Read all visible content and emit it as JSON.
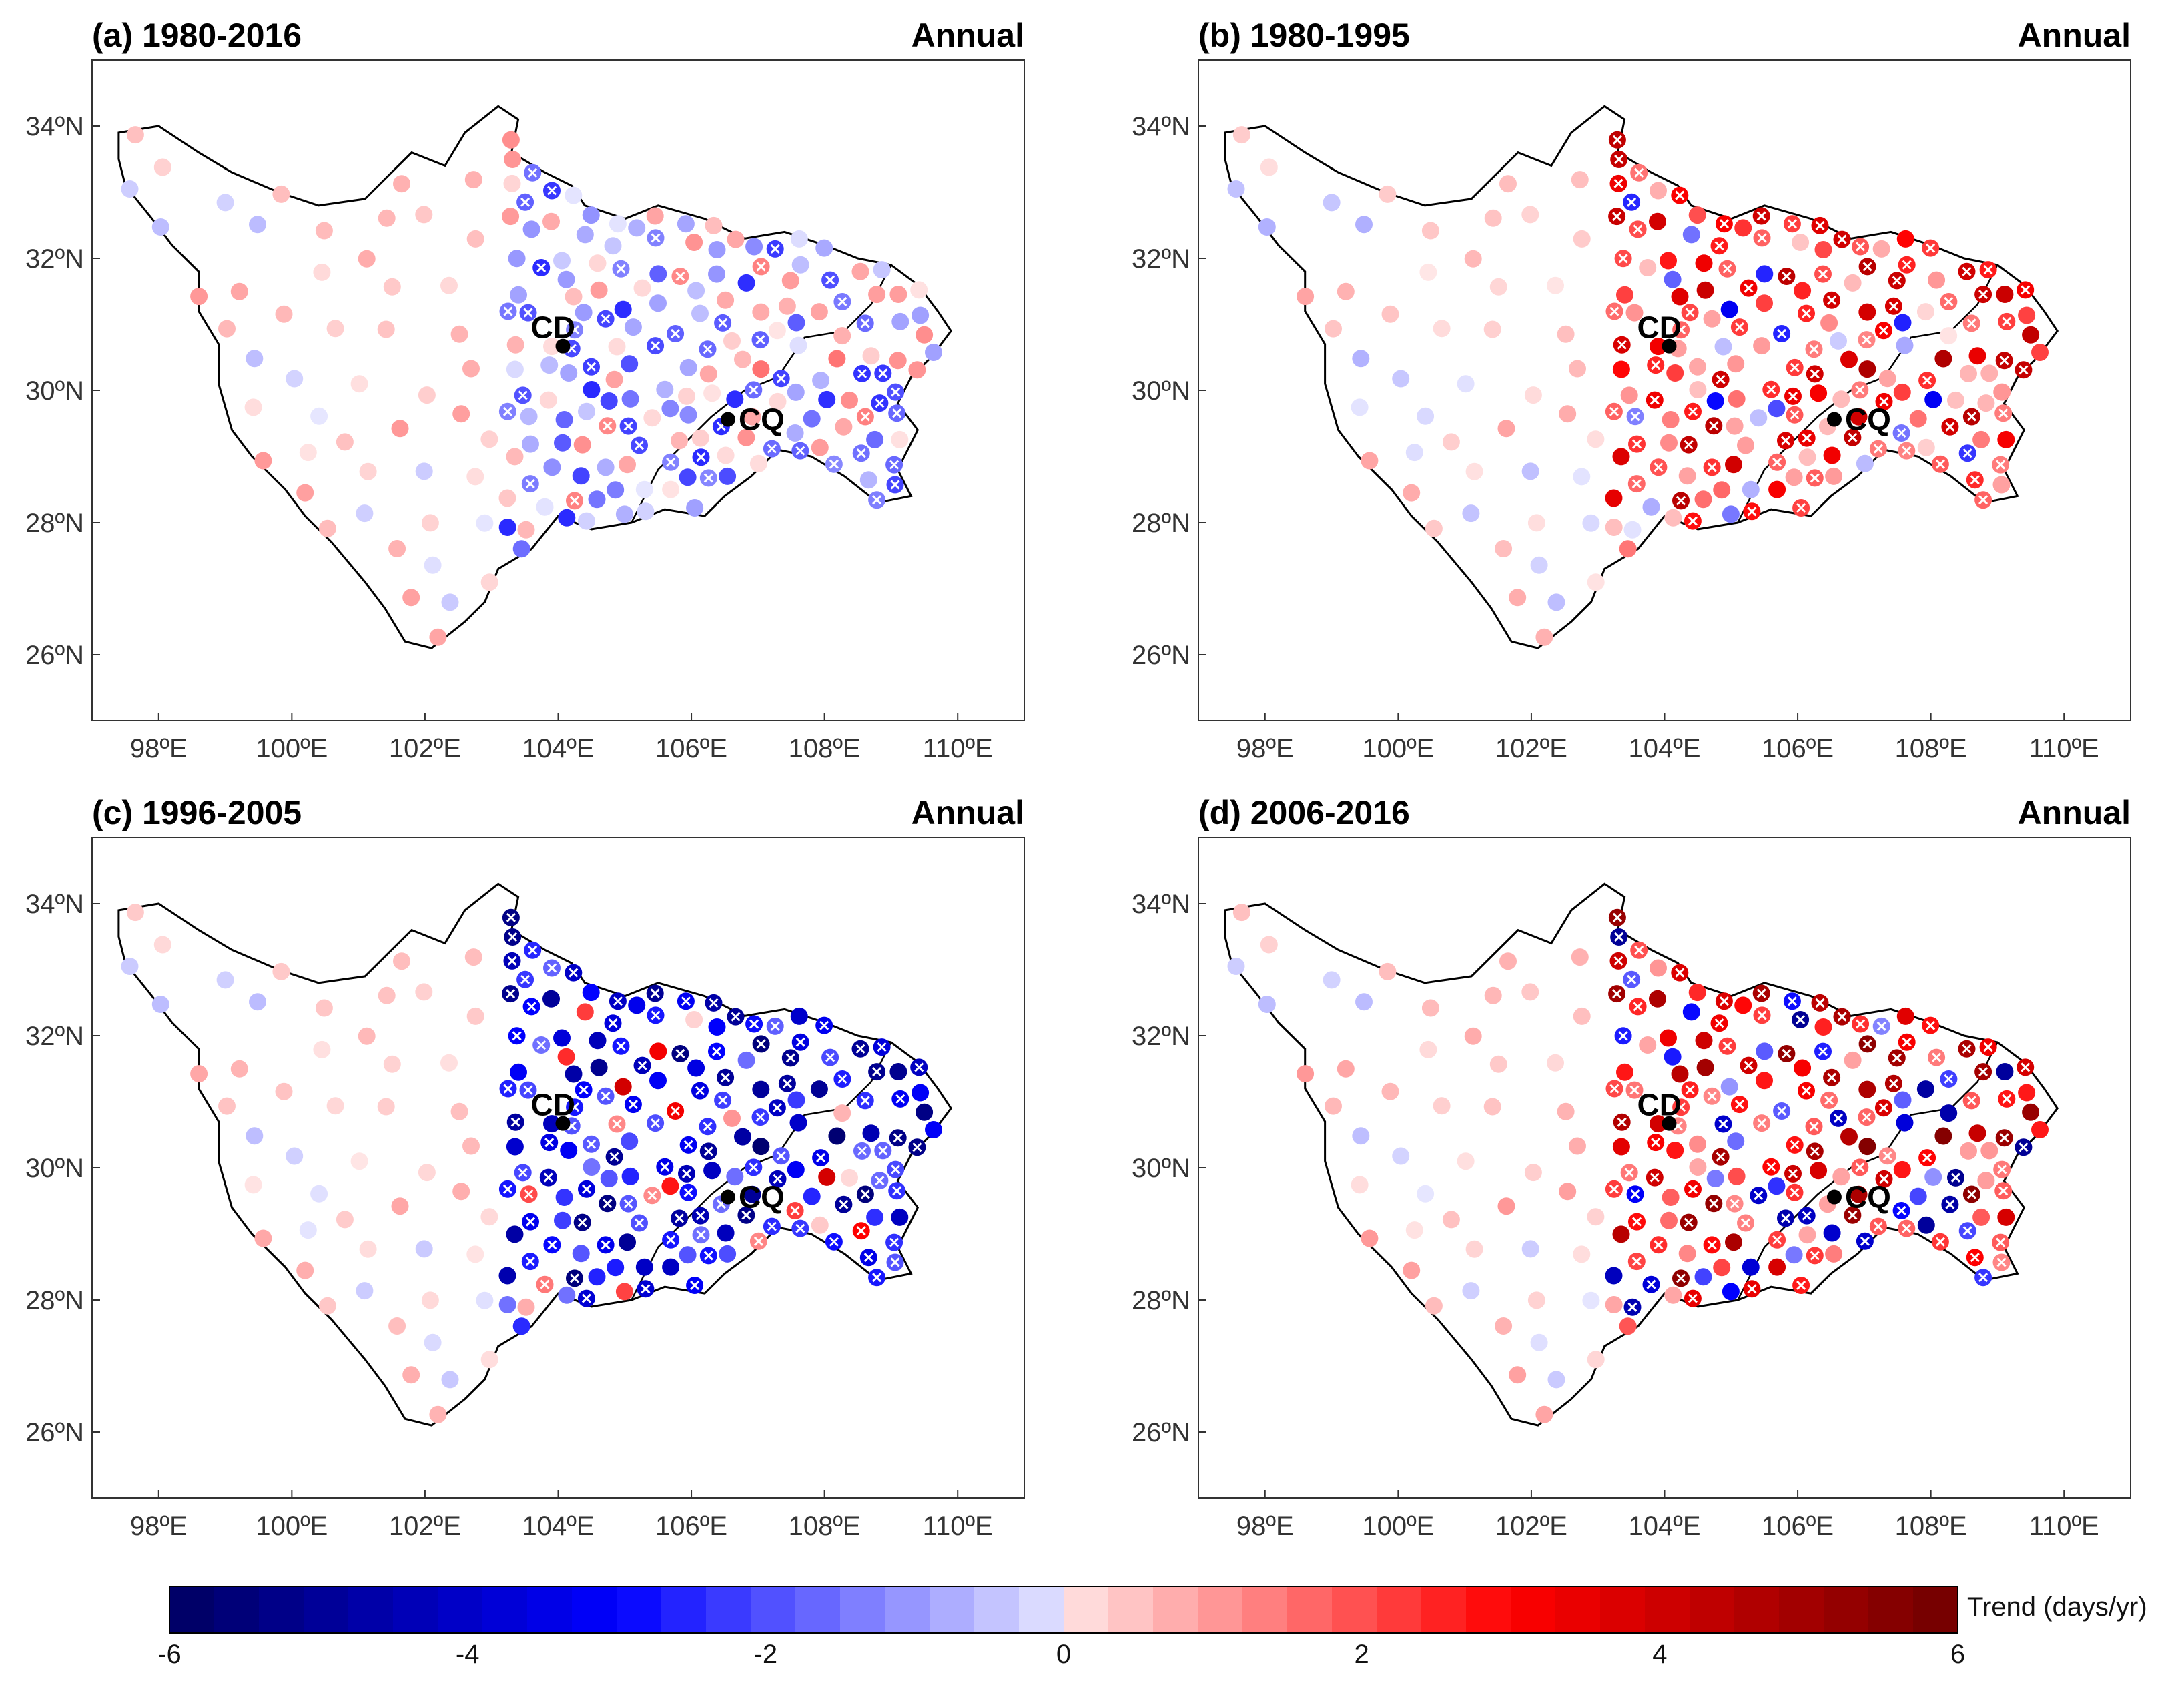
{
  "figure": {
    "panels": [
      {
        "id": "a",
        "label": "(a) 1980-2016",
        "season": "Annual",
        "mode": "a"
      },
      {
        "id": "b",
        "label": "(b) 1980-1995",
        "season": "Annual",
        "mode": "b"
      },
      {
        "id": "c",
        "label": "(c) 1996-2005",
        "season": "Annual",
        "mode": "c"
      },
      {
        "id": "d",
        "label": "(d) 2006-2016",
        "season": "Annual",
        "mode": "d"
      }
    ],
    "cities": [
      {
        "name": "CD",
        "lon": 104.07,
        "lat": 30.67
      },
      {
        "name": "CQ",
        "lon": 106.55,
        "lat": 29.56
      }
    ],
    "axes": {
      "lon_range": [
        97,
        111
      ],
      "lat_range": [
        25,
        35
      ],
      "lon_ticks": [
        98,
        100,
        102,
        104,
        106,
        108,
        110
      ],
      "lon_tick_labels": [
        "98ºE",
        "100ºE",
        "102ºE",
        "104ºE",
        "106ºE",
        "108ºE",
        "110ºE"
      ],
      "lat_ticks": [
        34,
        32,
        30,
        28,
        26
      ],
      "lat_tick_labels": [
        "34ºN",
        "32ºN",
        "30ºN",
        "28ºN",
        "26ºN"
      ]
    },
    "colorbar": {
      "label": "Trend (days/yr)",
      "min": -6,
      "max": 6,
      "steps": 40,
      "ticks": [
        -6,
        -4,
        -2,
        0,
        2,
        4,
        6
      ],
      "tick_labels": [
        "-6",
        "-4",
        "-2",
        "0",
        "2",
        "4",
        "6"
      ],
      "colors": {
        "low": "#000060",
        "mid_low": "#0000ff",
        "zero_low": "#e6e6ff",
        "zero_high": "#ffe6e6",
        "mid_high": "#ff0000",
        "high": "#700000"
      }
    },
    "region_outline_lonlat": [
      [
        97.4,
        33.9
      ],
      [
        98.0,
        34.0
      ],
      [
        98.6,
        33.6
      ],
      [
        99.1,
        33.3
      ],
      [
        99.8,
        33.0
      ],
      [
        100.4,
        32.8
      ],
      [
        101.1,
        32.9
      ],
      [
        101.5,
        33.3
      ],
      [
        101.8,
        33.6
      ],
      [
        102.3,
        33.4
      ],
      [
        102.6,
        33.9
      ],
      [
        103.1,
        34.3
      ],
      [
        103.4,
        34.1
      ],
      [
        103.3,
        33.6
      ],
      [
        103.8,
        33.3
      ],
      [
        104.2,
        33.1
      ],
      [
        104.4,
        32.8
      ],
      [
        105.0,
        32.6
      ],
      [
        105.5,
        32.8
      ],
      [
        106.2,
        32.6
      ],
      [
        106.8,
        32.3
      ],
      [
        107.4,
        32.4
      ],
      [
        108.0,
        32.2
      ],
      [
        108.5,
        32.0
      ],
      [
        109.0,
        31.9
      ],
      [
        109.4,
        31.6
      ],
      [
        109.7,
        31.2
      ],
      [
        109.9,
        30.9
      ],
      [
        109.6,
        30.5
      ],
      [
        109.3,
        30.2
      ],
      [
        109.1,
        29.8
      ],
      [
        109.4,
        29.4
      ],
      [
        109.1,
        28.8
      ],
      [
        109.3,
        28.4
      ],
      [
        108.8,
        28.3
      ],
      [
        108.3,
        28.7
      ],
      [
        107.8,
        29.0
      ],
      [
        107.3,
        29.1
      ],
      [
        106.9,
        28.7
      ],
      [
        106.5,
        28.4
      ],
      [
        106.2,
        28.1
      ],
      [
        105.6,
        28.2
      ],
      [
        105.1,
        28.0
      ],
      [
        104.5,
        27.9
      ],
      [
        104.0,
        28.1
      ],
      [
        103.6,
        27.6
      ],
      [
        103.1,
        27.3
      ],
      [
        102.9,
        26.8
      ],
      [
        102.6,
        26.5
      ],
      [
        102.1,
        26.1
      ],
      [
        101.7,
        26.2
      ],
      [
        101.4,
        26.7
      ],
      [
        101.1,
        27.1
      ],
      [
        100.6,
        27.7
      ],
      [
        100.2,
        28.1
      ],
      [
        99.9,
        28.5
      ],
      [
        99.4,
        29.0
      ],
      [
        99.1,
        29.4
      ],
      [
        98.9,
        30.1
      ],
      [
        98.9,
        30.7
      ],
      [
        98.6,
        31.2
      ],
      [
        98.6,
        31.8
      ],
      [
        98.2,
        32.2
      ],
      [
        97.9,
        32.6
      ],
      [
        97.5,
        33.1
      ],
      [
        97.4,
        33.5
      ]
    ],
    "provincial_border_lonlat": [
      [
        109.0,
        31.9
      ],
      [
        108.7,
        31.3
      ],
      [
        108.3,
        30.9
      ],
      [
        107.7,
        30.8
      ],
      [
        107.3,
        30.2
      ],
      [
        106.8,
        30.0
      ],
      [
        106.3,
        29.6
      ],
      [
        105.9,
        29.2
      ],
      [
        105.5,
        28.8
      ],
      [
        105.1,
        28.0
      ]
    ]
  }
}
